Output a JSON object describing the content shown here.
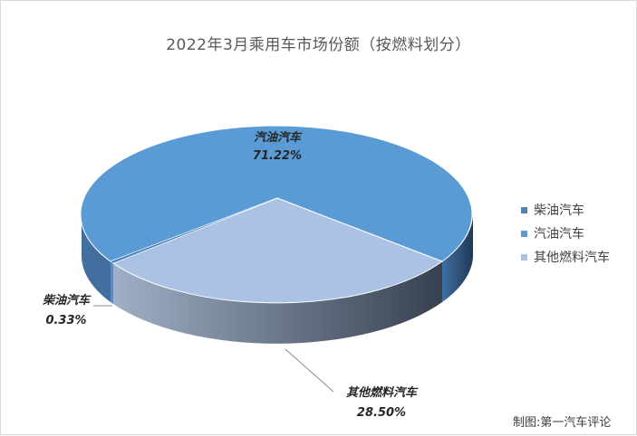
{
  "chart_title": "2022年3月乘用车市场份额（按燃料划分）",
  "credit": "制图:第一汽车评论",
  "colors": {
    "diesel": "#4f81b8",
    "gasoline": "#5b9bd5",
    "other": "#a9c1e3",
    "gasoline_side": "#2c4d72",
    "other_side_dark": "#3d4653",
    "other_side_light": "#9aa9bd"
  },
  "chart_data": {
    "type": "pie",
    "title": "2022年3月乘用车市场份额（按燃料划分）",
    "slices": [
      {
        "name": "柴油汽车",
        "value": 0.33,
        "label": "0.33%"
      },
      {
        "name": "汽油汽车",
        "value": 71.22,
        "label": "71.22%"
      },
      {
        "name": "其他燃料汽车",
        "value": 28.5,
        "label": "28.50%"
      }
    ],
    "legend_position": "right",
    "three_d": true
  },
  "legend": [
    {
      "name": "柴油汽车"
    },
    {
      "name": "汽油汽车"
    },
    {
      "name": "其他燃料汽车"
    }
  ]
}
